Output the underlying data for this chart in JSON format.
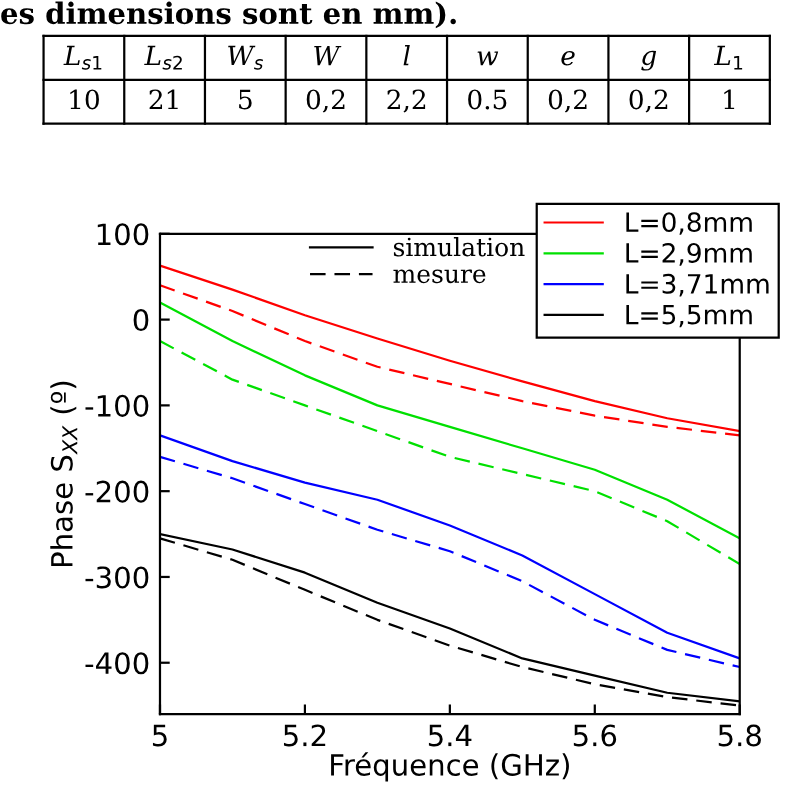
{
  "chart_data": {
    "type": "line",
    "xlabel": "Fréquence (GHz)",
    "ylabel": "Phase S$_{XX}$ (º)",
    "x": [
      5.0,
      5.1,
      5.2,
      5.3,
      5.4,
      5.5,
      5.6,
      5.7,
      5.8
    ],
    "series": [
      {
        "name": "L=0,8mm",
        "color": "#ff0000",
        "line_style": "solid",
        "values": [
          63,
          35,
          5,
          -22,
          -48,
          -72,
          -95,
          -115,
          -130
        ]
      },
      {
        "name": "L=2,9mm",
        "color": "#00e000",
        "line_style": "solid",
        "values": [
          20,
          -25,
          -65,
          -100,
          -125,
          -150,
          -175,
          -210,
          -255
        ]
      },
      {
        "name": "L=3,71mm",
        "color": "#0000ff",
        "line_style": "solid",
        "values": [
          -135,
          -165,
          -190,
          -210,
          -240,
          -275,
          -320,
          -365,
          -395
        ]
      },
      {
        "name": "L=5,5mm",
        "color": "#000000",
        "line_style": "solid",
        "values": [
          -250,
          -268,
          -295,
          -330,
          -360,
          -395,
          -415,
          -435,
          -445
        ]
      },
      {
        "color": "#ff0000",
        "line_style": "dashed",
        "values": [
          40,
          10,
          -25,
          -55,
          -75,
          -95,
          -112,
          -125,
          -135
        ]
      },
      {
        "color": "#00e000",
        "line_style": "dashed",
        "values": [
          -25,
          -70,
          -100,
          -130,
          -160,
          -180,
          -200,
          -235,
          -285
        ]
      },
      {
        "color": "#0000ff",
        "line_style": "dashed",
        "values": [
          -160,
          -185,
          -215,
          -245,
          -270,
          -305,
          -350,
          -385,
          -405
        ]
      },
      {
        "color": "#000000",
        "line_style": "dashed",
        "values": [
          -255,
          -280,
          -315,
          -350,
          -380,
          -405,
          -425,
          -440,
          -450
        ]
      }
    ],
    "xlim": [
      5,
      5.8
    ],
    "xticks": [
      5,
      5.2,
      5.4,
      5.6,
      5.8
    ],
    "ylim": [
      -460,
      100
    ],
    "yticks": [
      -400,
      -300,
      -200,
      -100,
      0,
      100
    ],
    "grid": false,
    "legend": "top right",
    "marker": "none",
    "annotations": [
      "es dimensions sont en mm).",
      "L$_{s1}$",
      "L$_{s2}$",
      "W$_{s}$",
      "W",
      "l",
      "w",
      "e",
      "g",
      "L$_{1}$",
      "10",
      "21",
      "5",
      "0,2",
      "2,2",
      "0.5",
      "0,2",
      "0,2",
      "1",
      "simulation",
      "mesure"
    ]
  }
}
